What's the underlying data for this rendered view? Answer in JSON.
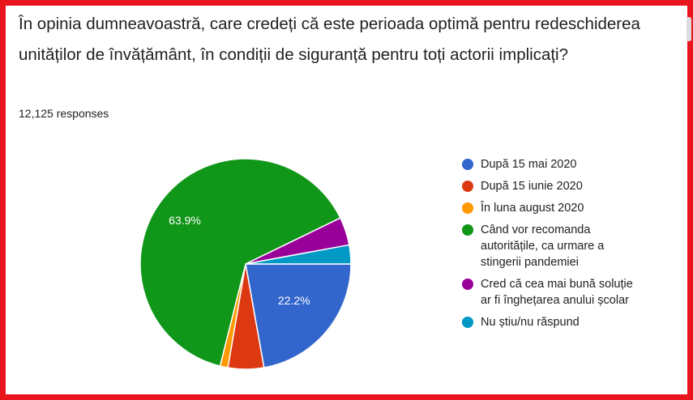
{
  "question": "În opinia dumneavoastră, care credeți că este perioada optimă pentru redeschiderea unităților de învățământ, în condiții de siguranță pentru toți actorii implicați?",
  "responses_label": "12,125 responses",
  "chart_data": {
    "type": "pie",
    "title": "În opinia dumneavoastră, care credeți că este perioada optimă pentru redeschiderea unităților de învățământ, în condiții de siguranță pentru toți actorii implicați?",
    "start": "3 o'clock, clockwise",
    "legend_position": "right",
    "slices": [
      {
        "label": "După 15 mai 2020",
        "value": 22.2,
        "color": "#3366cc",
        "data_label": "22.2%"
      },
      {
        "label": "După 15 iunie 2020",
        "value": 5.5,
        "color": "#dc3912",
        "data_label": ""
      },
      {
        "label": "În luna august 2020",
        "value": 1.2,
        "color": "#ff9900",
        "data_label": ""
      },
      {
        "label": "Când vor recomanda\nautoritățile, ca urmare a\nstingerii pandemiei",
        "value": 63.9,
        "color": "#109618",
        "data_label": "63.9%"
      },
      {
        "label": "Cred că cea mai bună soluție\nar fi înghețarea anului școlar",
        "value": 4.3,
        "color": "#990099",
        "data_label": ""
      },
      {
        "label": "Nu știu/nu răspund",
        "value": 2.9,
        "color": "#0099c6",
        "data_label": ""
      }
    ]
  }
}
